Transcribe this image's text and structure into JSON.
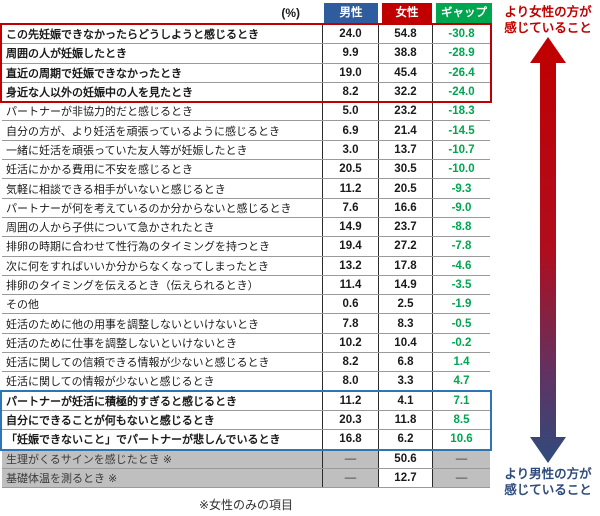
{
  "unit_label": "(%)",
  "columns": {
    "male": "男性",
    "female": "女性",
    "gap": "ギャップ"
  },
  "chart_data": {
    "type": "table",
    "title": "",
    "column_headers": [
      "男性",
      "女性",
      "ギャップ"
    ],
    "unit": "%",
    "rows": [
      {
        "label": "この先妊娠できなかったらどうしようと感じるとき",
        "male": "24.0",
        "female": "54.8",
        "gap": "-30.8",
        "group": "women_top"
      },
      {
        "label": "周囲の人が妊娠したとき",
        "male": "9.9",
        "female": "38.8",
        "gap": "-28.9",
        "group": "women_top"
      },
      {
        "label": "直近の周期で妊娠できなかったとき",
        "male": "19.0",
        "female": "45.4",
        "gap": "-26.4",
        "group": "women_top"
      },
      {
        "label": "身近な人以外の妊娠中の人を見たとき",
        "male": "8.2",
        "female": "32.2",
        "gap": "-24.0",
        "group": "women_top"
      },
      {
        "label": "パートナーが非協力的だと感じるとき",
        "male": "5.0",
        "female": "23.2",
        "gap": "-18.3",
        "group": "normal"
      },
      {
        "label": "自分の方が、より妊活を頑張っているように感じるとき",
        "male": "6.9",
        "female": "21.4",
        "gap": "-14.5",
        "group": "normal"
      },
      {
        "label": "一緒に妊活を頑張っていた友人等が妊娠したとき",
        "male": "3.0",
        "female": "13.7",
        "gap": "-10.7",
        "group": "normal"
      },
      {
        "label": "妊活にかかる費用に不安を感じるとき",
        "male": "20.5",
        "female": "30.5",
        "gap": "-10.0",
        "group": "normal"
      },
      {
        "label": "気軽に相談できる相手がいないと感じるとき",
        "male": "11.2",
        "female": "20.5",
        "gap": "-9.3",
        "group": "normal"
      },
      {
        "label": "パートナーが何を考えているのか分からないと感じるとき",
        "male": "7.6",
        "female": "16.6",
        "gap": "-9.0",
        "group": "normal"
      },
      {
        "label": "周囲の人から子供について急かされたとき",
        "male": "14.9",
        "female": "23.7",
        "gap": "-8.8",
        "group": "normal"
      },
      {
        "label": "排卵の時期に合わせて性行為のタイミングを持つとき",
        "male": "19.4",
        "female": "27.2",
        "gap": "-7.8",
        "group": "normal"
      },
      {
        "label": "次に何をすればいいか分からなくなってしまったとき",
        "male": "13.2",
        "female": "17.8",
        "gap": "-4.6",
        "group": "normal"
      },
      {
        "label": "排卵のタイミングを伝えるとき（伝えられるとき）",
        "male": "11.4",
        "female": "14.9",
        "gap": "-3.5",
        "group": "normal"
      },
      {
        "label": "その他",
        "male": "0.6",
        "female": "2.5",
        "gap": "-1.9",
        "group": "normal"
      },
      {
        "label": "妊活のために他の用事を調整しないといけないとき",
        "male": "7.8",
        "female": "8.3",
        "gap": "-0.5",
        "group": "normal"
      },
      {
        "label": "妊活のために仕事を調整しないといけないとき",
        "male": "10.2",
        "female": "10.4",
        "gap": "-0.2",
        "group": "normal"
      },
      {
        "label": "妊活に関しての信頼できる情報が少ないと感じるとき",
        "male": "8.2",
        "female": "6.8",
        "gap": "1.4",
        "group": "normal"
      },
      {
        "label": "妊活に関しての情報が少ないと感じるとき",
        "male": "8.0",
        "female": "3.3",
        "gap": "4.7",
        "group": "normal"
      },
      {
        "label": "パートナーが妊活に積極的すぎると感じるとき",
        "male": "11.2",
        "female": "4.1",
        "gap": "7.1",
        "group": "men_bottom"
      },
      {
        "label": "自分にできることが何もないと感じるとき",
        "male": "20.3",
        "female": "11.8",
        "gap": "8.5",
        "group": "men_bottom"
      },
      {
        "label": "「妊娠できないこと」でパートナーが悲しんでいるとき",
        "male": "16.8",
        "female": "6.2",
        "gap": "10.6",
        "group": "men_bottom"
      },
      {
        "label": "生理がくるサインを感じたとき ※",
        "male": "—",
        "female": "50.6",
        "gap": "—",
        "group": "female_only"
      },
      {
        "label": "基礎体温を測るとき ※",
        "male": "—",
        "female": "12.7",
        "gap": "—",
        "group": "female_only"
      }
    ]
  },
  "annotations": {
    "top_line1": "より女性の方が",
    "top_line2": "感じていること",
    "bottom_line1": "より男性の方が",
    "bottom_line2": "感じていること"
  },
  "footnote": "※女性のみの項目",
  "colors": {
    "male_header_bg": "#2E5C9E",
    "female_header_bg": "#C00000",
    "gap_header_bg": "#00A550",
    "gap_value_text": "#00A550",
    "women_frame": "#C00000",
    "men_frame": "#2E75B6",
    "arrow_top": "#C00000",
    "arrow_bottom": "#2F4B7C",
    "female_only_row_bg": "#BFBFBF"
  }
}
